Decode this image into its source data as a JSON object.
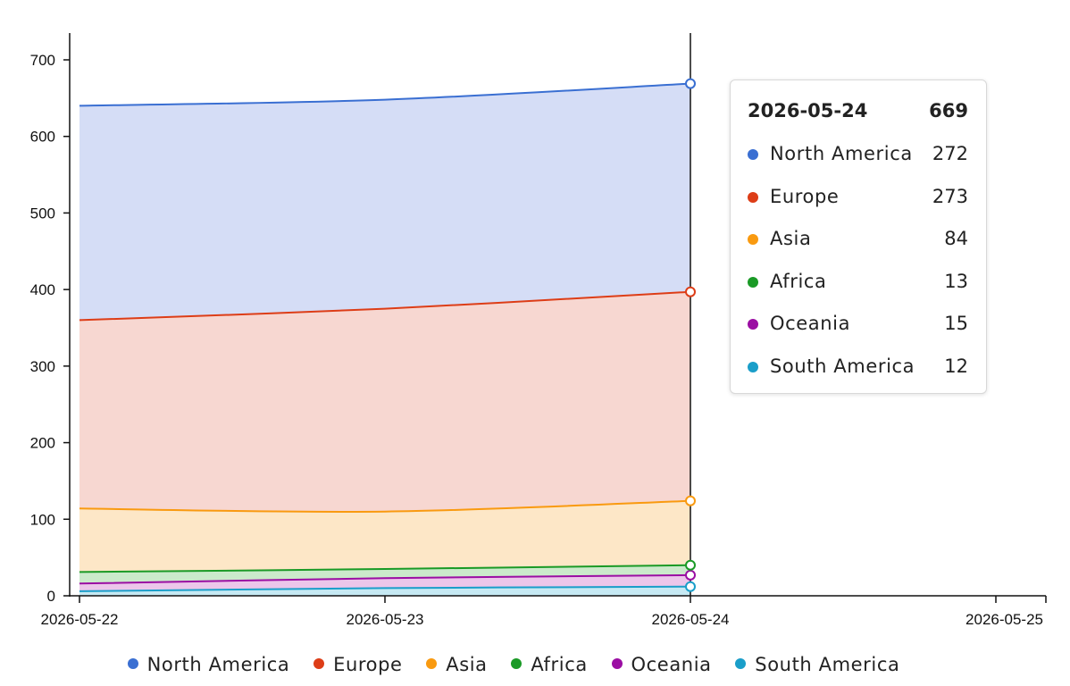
{
  "chart_data": {
    "type": "area",
    "stacked": true,
    "x": [
      "2026-05-22",
      "2026-05-23",
      "2026-05-24"
    ],
    "x_ticks": [
      "2026-05-22",
      "2026-05-23",
      "2026-05-24",
      "2026-05-25"
    ],
    "y_ticks": [
      "0",
      "100",
      "200",
      "300",
      "400",
      "500",
      "600",
      "700"
    ],
    "ylim": [
      0,
      735
    ],
    "grid": false,
    "legend_position": "bottom",
    "series": [
      {
        "name": "South America",
        "color": "#1a9ec9",
        "fill": "#c6e9f3",
        "values": [
          6,
          10,
          12
        ]
      },
      {
        "name": "Oceania",
        "color": "#9b0ea3",
        "fill": "#ecc6ea",
        "values": [
          10,
          13,
          15
        ]
      },
      {
        "name": "Africa",
        "color": "#1a9a26",
        "fill": "#cbeacb",
        "values": [
          15,
          12,
          13
        ]
      },
      {
        "name": "Asia",
        "color": "#f99a10",
        "fill": "#fde7c7",
        "values": [
          83,
          75,
          84
        ]
      },
      {
        "name": "Europe",
        "color": "#dd3d17",
        "fill": "#f7d7d1",
        "values": [
          246,
          265,
          273
        ]
      },
      {
        "name": "North America",
        "color": "#3a6fd2",
        "fill": "#d5ddf6",
        "values": [
          280,
          273,
          272
        ]
      }
    ],
    "hover_index": 2
  },
  "tooltip": {
    "date": "2026-05-24",
    "total": "669",
    "rows": [
      {
        "name": "North America",
        "value": "272",
        "color": "#3a6fd2"
      },
      {
        "name": "Europe",
        "value": "273",
        "color": "#dd3d17"
      },
      {
        "name": "Asia",
        "value": "84",
        "color": "#f99a10"
      },
      {
        "name": "Africa",
        "value": "13",
        "color": "#1a9a26"
      },
      {
        "name": "Oceania",
        "value": "15",
        "color": "#9b0ea3"
      },
      {
        "name": "South America",
        "value": "12",
        "color": "#1a9ec9"
      }
    ]
  },
  "legend": [
    {
      "name": "North America",
      "color": "#3a6fd2"
    },
    {
      "name": "Europe",
      "color": "#dd3d17"
    },
    {
      "name": "Asia",
      "color": "#f99a10"
    },
    {
      "name": "Africa",
      "color": "#1a9a26"
    },
    {
      "name": "Oceania",
      "color": "#9b0ea3"
    },
    {
      "name": "South America",
      "color": "#1a9ec9"
    }
  ]
}
